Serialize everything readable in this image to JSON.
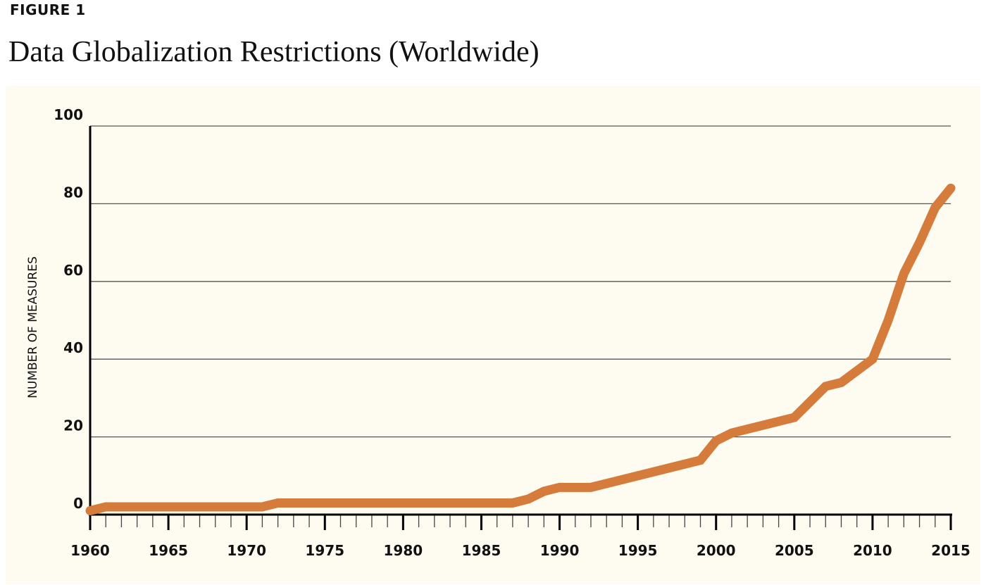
{
  "figure_label": "FIGURE 1",
  "title": "Data Globalization Restrictions (Worldwide)",
  "colors": {
    "background": "#fefcf0",
    "line": "#d57b3c",
    "axis": "#000000",
    "grid": "#555555"
  },
  "chart_data": {
    "type": "line",
    "title": "Data Globalization Restrictions (Worldwide)",
    "xlabel": "",
    "ylabel": "NUMBER OF MEASURES",
    "xlim": [
      1960,
      2015
    ],
    "ylim": [
      0,
      100
    ],
    "xticks": [
      1960,
      1965,
      1970,
      1975,
      1980,
      1985,
      1990,
      1995,
      2000,
      2005,
      2010,
      2015
    ],
    "yticks": [
      0,
      20,
      40,
      60,
      80,
      100
    ],
    "grid": "horizontal",
    "series": [
      {
        "x": [
          1960,
          1961,
          1971,
          1972,
          1987,
          1988,
          1989,
          1990,
          1992,
          1999,
          2000,
          2001,
          2005,
          2007,
          2008,
          2010,
          2011,
          2012,
          2013,
          2014,
          2015
        ],
        "y": [
          1,
          2,
          2,
          3,
          3,
          4,
          6,
          7,
          7,
          14,
          19,
          21,
          25,
          33,
          34,
          40,
          50,
          62,
          70,
          79,
          84
        ]
      }
    ]
  }
}
